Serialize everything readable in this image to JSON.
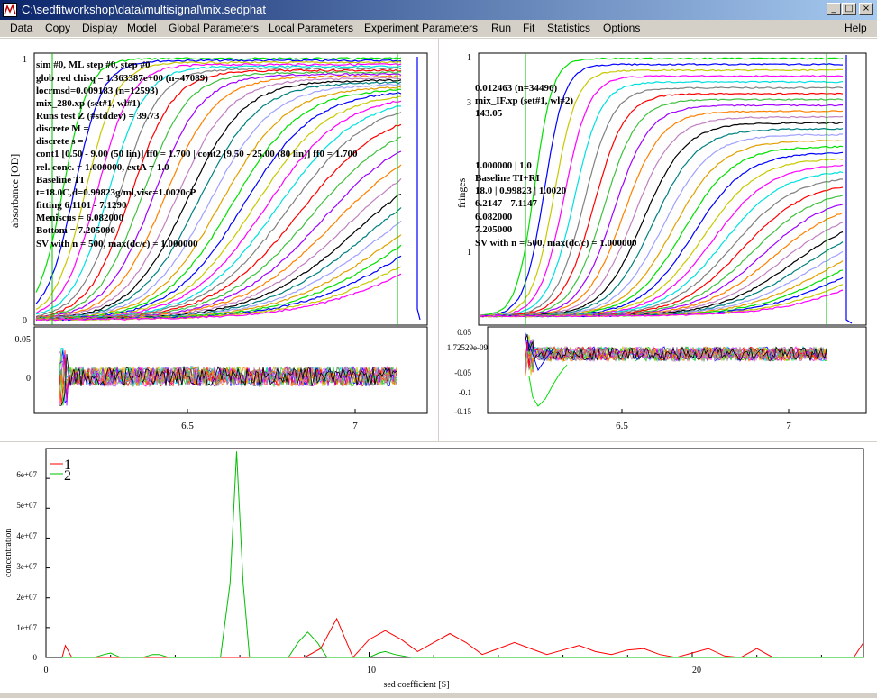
{
  "window": {
    "title": "C:\\sedfitworkshop\\data\\multisignal\\mix.sedphat",
    "minimize_glyph": "_",
    "maximize_glyph": "□",
    "close_glyph": "×"
  },
  "menu": [
    "Data",
    "Copy",
    "Display",
    "Model",
    "Global Parameters",
    "Local Parameters",
    "Experiment Parameters",
    "Run",
    "Fit",
    "Statistics",
    "Options",
    "Help"
  ],
  "left_plot": {
    "ylabel": "absorbance [OD]",
    "yticks": [
      "1",
      "0"
    ],
    "info": [
      "sim #0, ML step #0, step #0",
      "glob red chisq = 1.363387e+00 (n=47089)",
      "locrmsd=0.009183 (n=12593)",
      "mix_280.xp (set#1, wl#1)",
      "Runs test Z (#stddev) = 39.73",
      "discrete M =",
      "discrete s =",
      "cont1 [0.50 - 9.00 (50  lin)] ff0 = 1.700 | cont2 [9.50 - 25.00 (80  lin)] ff0 = 1.700",
      "rel. conc. = 1.000000, extA = 1.0",
      "Baseline TI",
      "t=18.0C,d=0.99823g/ml,visc=1.0020cP",
      "fitting 6.1101 - 7.1290",
      "Meniscus = 6.082000",
      "Bottom = 7.205000",
      "SV with n = 500, max(dc/c) = 1.000000"
    ],
    "resid_yticks": [
      "0.05",
      "0"
    ],
    "xticks": [
      "6.5",
      "7"
    ]
  },
  "right_plot": {
    "ylabel": "fringes",
    "yticks": [
      "1",
      "3",
      "1"
    ],
    "info": [
      "0.012463 (n=34496)",
      "mix_IF.xp (set#1, wl#2)",
      "143.05",
      "",
      "",
      "1.000000 | 1.0",
      "Baseline TI+RI",
      "18.0 | 0.99823 | 1.0020",
      "6.2147 - 7.1147",
      "6.082000",
      "7.205000",
      "SV with n = 500, max(dc/c) = 1.000000"
    ],
    "resid_yticks": [
      "0.05",
      "1.72529e-09",
      "-0.05",
      "-0.1",
      "-0.15"
    ],
    "xticks": [
      "6.5",
      "7"
    ]
  },
  "bottom_plot": {
    "xlabel": "sed coefficient [S]",
    "ylabel": "concentration",
    "yticks": [
      "6e+07",
      "5e+07",
      "4e+07",
      "3e+07",
      "2e+07",
      "1e+07",
      "0"
    ],
    "xticks": [
      "0",
      "10",
      "20"
    ],
    "legend": [
      "1",
      "2"
    ]
  },
  "colors": {
    "red_series": "#ff0000",
    "green_series": "#00c000",
    "selection_bg": "#0a246a",
    "palette": [
      "#00e000",
      "#0000ff",
      "#c8c800",
      "#ff00ff",
      "#00e0e0",
      "#808080",
      "#ff0000",
      "#40c040",
      "#a000ff",
      "#ff8000",
      "#c080c0",
      "#000000",
      "#008080",
      "#a0a0ff",
      "#e0a000"
    ]
  },
  "chart_data": [
    {
      "type": "line",
      "ylabel": "concentration",
      "xlabel": "sed coefficient [S]",
      "xlim": [
        0,
        25.3
      ],
      "ylim": [
        0,
        70000000.0
      ],
      "series": [
        {
          "name": "1",
          "color": "#ff0000",
          "x": [
            0.5,
            0.6,
            0.8,
            1,
            1.5,
            2,
            2.5,
            3,
            4,
            5,
            6,
            7,
            7.5,
            8,
            8.5,
            9,
            9.5,
            10,
            10.5,
            11,
            11.5,
            12,
            12.5,
            13,
            13.5,
            14,
            14.5,
            15,
            15.5,
            16,
            16.5,
            17,
            17.5,
            18,
            18.5,
            19,
            19.5,
            20,
            20.5,
            21,
            21.5,
            22,
            22.5,
            23,
            23.5,
            24,
            24.5,
            25,
            25.3
          ],
          "y": [
            0,
            4000000.0,
            0,
            0,
            0,
            0,
            0,
            0,
            0,
            0,
            0,
            0,
            0,
            0,
            3000000.0,
            13000000.0,
            0,
            6000000.0,
            9000000.0,
            6000000.0,
            2000000.0,
            5000000.0,
            8000000.0,
            5000000.0,
            1000000.0,
            3000000.0,
            5000000.0,
            3000000.0,
            1000000.0,
            2500000.0,
            4000000.0,
            2000000.0,
            1000000.0,
            2500000.0,
            3000000.0,
            1000000.0,
            0,
            1500000.0,
            3000000.0,
            500000.0,
            0,
            3000000.0,
            0,
            0,
            0,
            0,
            0,
            0,
            5000000.0
          ]
        },
        {
          "name": "2",
          "color": "#00c000",
          "x": [
            0.5,
            1.5,
            1.8,
            2,
            2.3,
            3,
            3.3,
            3.5,
            3.8,
            5,
            5.4,
            5.7,
            5.9,
            6.1,
            6.3,
            6.6,
            7,
            7.5,
            7.8,
            8.1,
            8.4,
            8.7,
            9,
            10,
            10.3,
            10.5,
            10.8,
            11.3,
            12,
            25.3
          ],
          "y": [
            0,
            0,
            1000000.0,
            1500000.0,
            0,
            0,
            1000000.0,
            1000000.0,
            0,
            0,
            0,
            25000000.0,
            69000000.0,
            25000000.0,
            0,
            0,
            0,
            0,
            5000000.0,
            8500000.0,
            5000000.0,
            0,
            0,
            0,
            1500000.0,
            2000000.0,
            1000000.0,
            0,
            0,
            0
          ]
        }
      ]
    }
  ]
}
